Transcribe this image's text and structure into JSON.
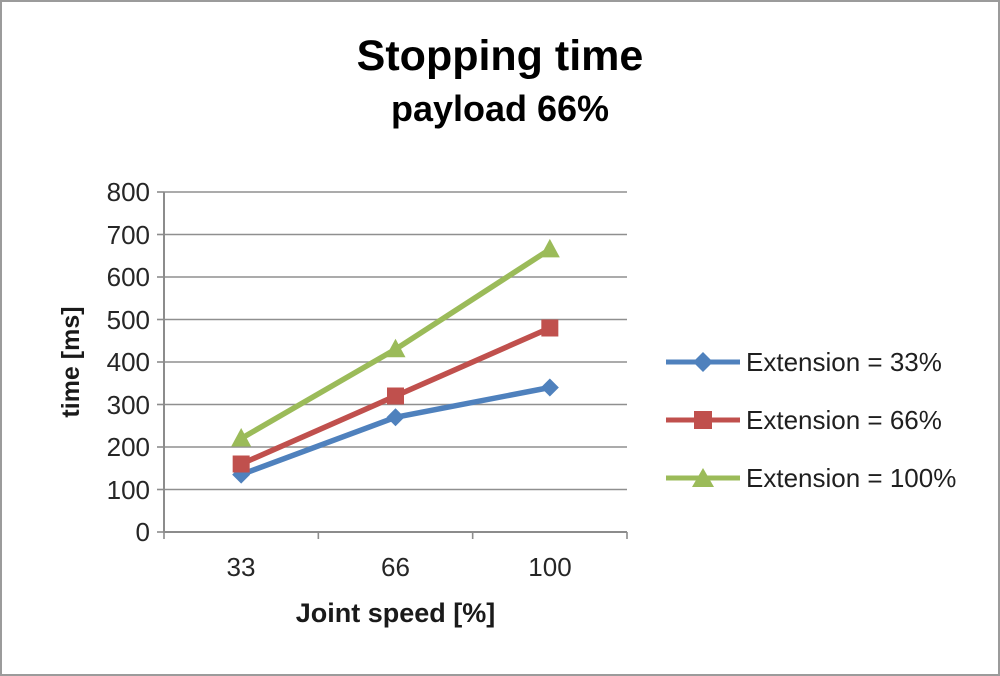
{
  "page": {
    "background": "#ffffff",
    "border_color": "#9b9b9b"
  },
  "chart_data": {
    "type": "line",
    "title": "Stopping time",
    "subtitle": "payload 66%",
    "xlabel": "Joint speed [%]",
    "ylabel": "time [ms]",
    "categories": [
      "33",
      "66",
      "100"
    ],
    "ylim": [
      0,
      800
    ],
    "ytick_step": 100,
    "yticks": [
      "800",
      "700",
      "600",
      "500",
      "400",
      "300",
      "200",
      "100",
      "0"
    ],
    "grid": "horizontal",
    "legend_position": "right",
    "axis_color": "#8c8c8c",
    "gridline_color": "#8f8f8f",
    "series": [
      {
        "name": "Extension = 33%",
        "marker": "diamond",
        "color": "#4F81BD",
        "values": [
          135,
          270,
          340
        ]
      },
      {
        "name": "Extension = 66%",
        "marker": "square",
        "color": "#C0504D",
        "values": [
          160,
          320,
          480
        ]
      },
      {
        "name": "Extension = 100%",
        "marker": "triangle",
        "color": "#9BBB59",
        "values": [
          220,
          430,
          665
        ]
      }
    ]
  }
}
